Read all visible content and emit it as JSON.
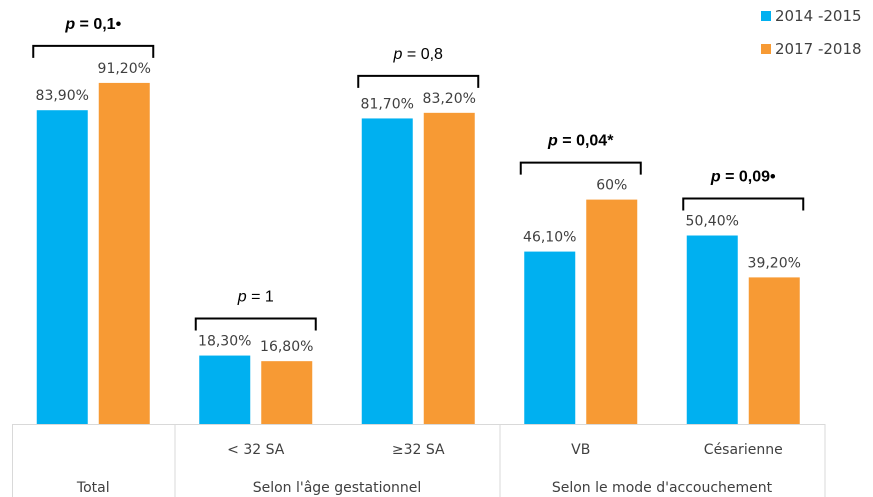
{
  "chart_data": {
    "type": "bar",
    "categories": [
      "Total",
      "< 32 SA",
      "≥32 SA",
      "VB",
      "Césarienne"
    ],
    "groups": [
      {
        "label": "Total",
        "categories": [
          "Total"
        ]
      },
      {
        "label": "Selon l'âge gestationnel",
        "categories": [
          "< 32 SA",
          "≥32 SA"
        ]
      },
      {
        "label": "Selon le mode d'accouchement",
        "categories": [
          "VB",
          "Césarienne"
        ]
      }
    ],
    "series": [
      {
        "name": "2014 -2015",
        "color": "#00B0F0",
        "values": [
          83.9,
          18.3,
          81.7,
          46.1,
          50.4
        ],
        "labels": [
          "83,90%",
          "18,30%",
          "81,70%",
          "46,10%",
          "50,40%"
        ]
      },
      {
        "name": "2017 -2018",
        "color": "#F79A34",
        "values": [
          91.2,
          16.8,
          83.2,
          60,
          39.2
        ],
        "labels": [
          "91,20%",
          "16,80%",
          "83,20%",
          "60%",
          "39,20%"
        ]
      }
    ],
    "annotations": [
      {
        "category": "Total",
        "p": "0,1",
        "mark": "•",
        "bold": true
      },
      {
        "category": "< 32 SA",
        "p": "1",
        "mark": "",
        "bold": false
      },
      {
        "category": "≥32 SA",
        "p": "0,8",
        "mark": "",
        "bold": false
      },
      {
        "category": "VB",
        "p": "0,04",
        "mark": "*",
        "bold": true
      },
      {
        "category": "Césarienne",
        "p": "0,09",
        "mark": "•",
        "bold": true
      }
    ],
    "ylim": [
      0,
      100
    ],
    "grid": false,
    "legend_position": "top-right"
  }
}
